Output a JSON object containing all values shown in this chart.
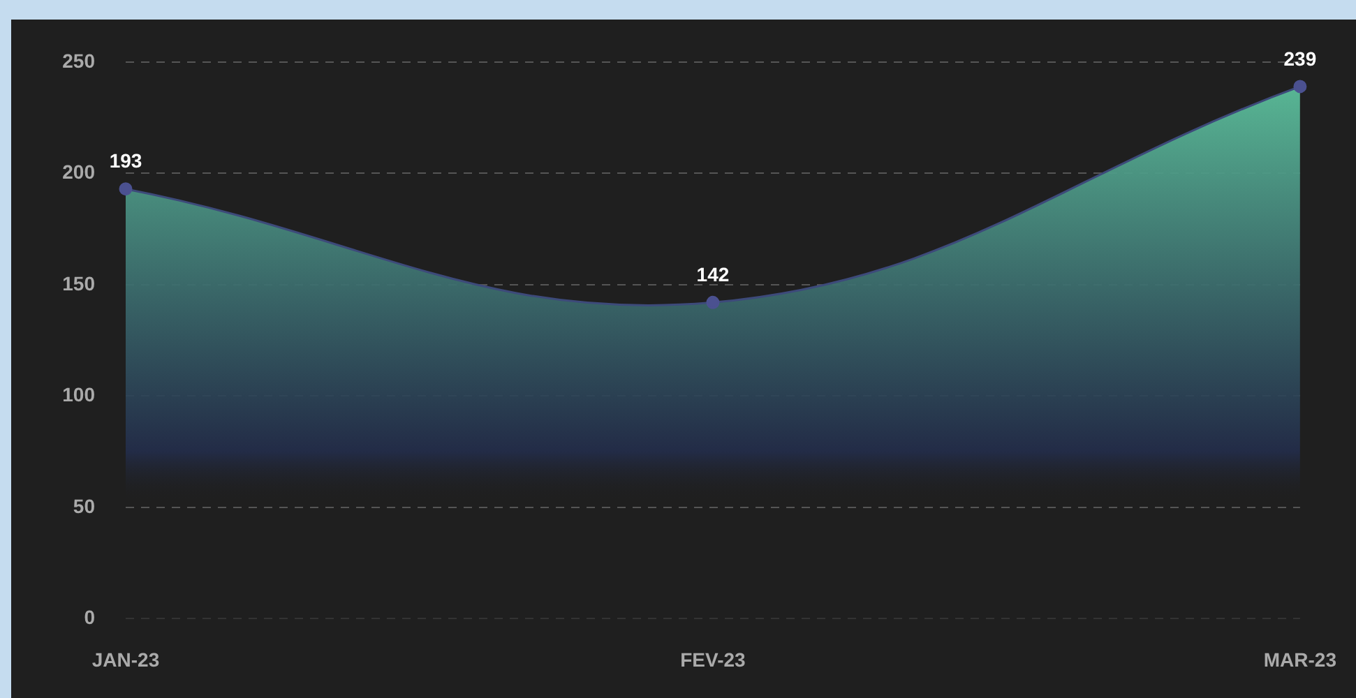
{
  "chart_data": {
    "type": "area",
    "categories": [
      "JAN-23",
      "FEV-23",
      "MAR-23"
    ],
    "series": [
      {
        "color": "#3d4a7a",
        "values": [
          193,
          142,
          239
        ]
      }
    ],
    "ylim": [
      0,
      250
    ],
    "yticks": [
      0,
      50,
      100,
      150,
      200,
      250
    ],
    "grid": "y",
    "legend": false,
    "marker": "circle",
    "data_labels": true
  }
}
